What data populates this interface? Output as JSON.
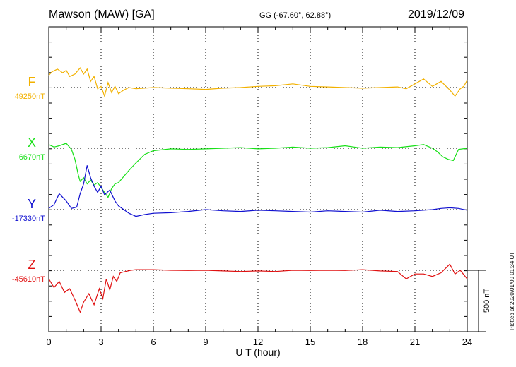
{
  "header": {
    "station": "Mawson (MAW)  [GA]",
    "coords": "GG (-67.60°,  62.88°)",
    "date": "2019/12/09"
  },
  "plotted_note": "Plotted at 2020/01/09 01:34  UT",
  "scale_bar_label": "500 nT",
  "chart_data": {
    "type": "line",
    "xlabel": "U T (hour)",
    "xlim": [
      0,
      24
    ],
    "xticks": [
      0,
      3,
      6,
      9,
      12,
      15,
      18,
      21,
      24
    ],
    "grid": true,
    "scale_bar_nT": 500,
    "series": [
      {
        "name": "F",
        "baseline_label": "49250nT",
        "baseline_nT": 49250,
        "color": "#f2b100",
        "x": [
          0,
          0.2,
          0.5,
          0.8,
          1.0,
          1.2,
          1.5,
          1.8,
          2.0,
          2.2,
          2.4,
          2.6,
          2.8,
          3.0,
          3.2,
          3.4,
          3.6,
          3.8,
          4.0,
          4.3,
          4.6,
          5.0,
          6,
          7,
          8,
          9,
          10,
          11,
          12,
          13,
          14,
          15,
          16,
          17,
          18,
          19,
          20,
          20.5,
          21,
          21.5,
          22,
          22.5,
          23,
          23.3,
          23.6,
          23.8,
          24
        ],
        "y": [
          49350,
          49380,
          49400,
          49370,
          49390,
          49340,
          49360,
          49410,
          49360,
          49400,
          49300,
          49340,
          49240,
          49260,
          49180,
          49290,
          49210,
          49260,
          49200,
          49230,
          49250,
          49240,
          49250,
          49245,
          49240,
          49235,
          49245,
          49250,
          49260,
          49265,
          49280,
          49260,
          49255,
          49250,
          49245,
          49250,
          49255,
          49240,
          49280,
          49320,
          49260,
          49300,
          49230,
          49180,
          49240,
          49260,
          49310
        ]
      },
      {
        "name": "X",
        "baseline_label": "6670nT",
        "baseline_nT": 6670,
        "color": "#18e018",
        "x": [
          0,
          0.3,
          0.6,
          1.0,
          1.3,
          1.5,
          1.7,
          1.8,
          2.0,
          2.2,
          2.4,
          2.6,
          2.8,
          3.0,
          3.2,
          3.4,
          3.6,
          3.8,
          4.0,
          4.3,
          4.6,
          5.0,
          5.5,
          6.0,
          7,
          8,
          9,
          10,
          11,
          12,
          13,
          14,
          15,
          16,
          17,
          18,
          19,
          20,
          21,
          21.5,
          22,
          22.3,
          22.6,
          22.9,
          23.2,
          23.5,
          24
        ],
        "y": [
          6700,
          6680,
          6690,
          6710,
          6660,
          6580,
          6450,
          6400,
          6430,
          6380,
          6410,
          6370,
          6390,
          6350,
          6310,
          6270,
          6340,
          6380,
          6390,
          6440,
          6490,
          6550,
          6620,
          6650,
          6665,
          6660,
          6665,
          6670,
          6675,
          6665,
          6670,
          6680,
          6670,
          6675,
          6690,
          6670,
          6680,
          6675,
          6690,
          6700,
          6670,
          6640,
          6600,
          6580,
          6570,
          6660,
          6670
        ]
      },
      {
        "name": "Y",
        "baseline_label": "-17330nT",
        "baseline_nT": -17330,
        "color": "#1010d0",
        "x": [
          0,
          0.3,
          0.6,
          1.0,
          1.3,
          1.6,
          1.8,
          2.0,
          2.2,
          2.4,
          2.6,
          2.8,
          3.0,
          3.2,
          3.5,
          3.8,
          4.0,
          4.3,
          4.6,
          5.0,
          5.5,
          6,
          7,
          8,
          9,
          10,
          11,
          12,
          13,
          14,
          15,
          16,
          17,
          18,
          19,
          20,
          21,
          22,
          22.5,
          23,
          23.5,
          24
        ],
        "y": [
          -17320,
          -17290,
          -17200,
          -17260,
          -17320,
          -17310,
          -17200,
          -17120,
          -16970,
          -17070,
          -17140,
          -17190,
          -17140,
          -17210,
          -17170,
          -17260,
          -17300,
          -17330,
          -17360,
          -17385,
          -17370,
          -17360,
          -17355,
          -17345,
          -17330,
          -17340,
          -17345,
          -17335,
          -17340,
          -17345,
          -17350,
          -17340,
          -17345,
          -17350,
          -17335,
          -17345,
          -17340,
          -17330,
          -17320,
          -17315,
          -17320,
          -17335
        ]
      },
      {
        "name": "Z",
        "baseline_label": "-45610nT",
        "baseline_nT": -45610,
        "color": "#e01010",
        "x": [
          0,
          0.3,
          0.6,
          0.9,
          1.2,
          1.5,
          1.8,
          2.0,
          2.3,
          2.6,
          2.9,
          3.1,
          3.3,
          3.5,
          3.7,
          3.9,
          4.1,
          4.4,
          4.7,
          5.0,
          6,
          7,
          8,
          9,
          10,
          11,
          12,
          13,
          14,
          15,
          16,
          17,
          18,
          19,
          20,
          20.5,
          21,
          21.5,
          22,
          22.5,
          23,
          23.3,
          23.6,
          24
        ],
        "y": [
          -45680,
          -45750,
          -45700,
          -45790,
          -45760,
          -45850,
          -45950,
          -45870,
          -45800,
          -45890,
          -45760,
          -45840,
          -45680,
          -45770,
          -45660,
          -45700,
          -45630,
          -45620,
          -45610,
          -45605,
          -45605,
          -45610,
          -45612,
          -45610,
          -45615,
          -45620,
          -45615,
          -45620,
          -45610,
          -45612,
          -45610,
          -45612,
          -45605,
          -45615,
          -45620,
          -45680,
          -45640,
          -45640,
          -45660,
          -45630,
          -45560,
          -45640,
          -45610,
          -45680
        ]
      }
    ]
  }
}
